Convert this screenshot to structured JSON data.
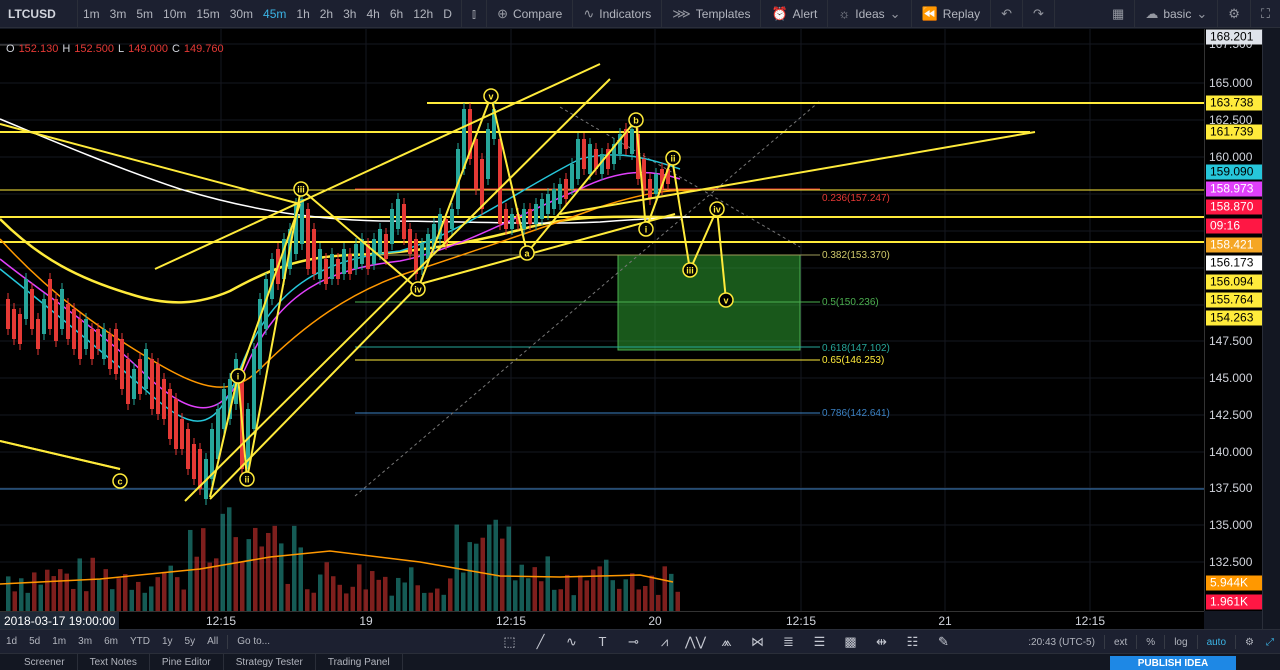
{
  "symbol": "LTCUSD",
  "intervals": [
    "1m",
    "3m",
    "5m",
    "10m",
    "15m",
    "30m",
    "45m",
    "1h",
    "2h",
    "3h",
    "4h",
    "6h",
    "12h",
    "D"
  ],
  "active_interval": "45m",
  "toolbar": {
    "compare": "Compare",
    "indicators": "Indicators",
    "templates": "Templates",
    "alert": "Alert",
    "ideas": "Ideas",
    "replay": "Replay",
    "layout": "basic"
  },
  "ohlc": {
    "o_label": "O",
    "o": "152.130",
    "h_label": "H",
    "h": "152.500",
    "l_label": "L",
    "l": "149.000",
    "c_label": "C",
    "c": "149.760"
  },
  "price_ticks": [
    "167.500",
    "165.000",
    "162.500",
    "160.000",
    "147.500",
    "145.000",
    "142.500",
    "140.000",
    "137.500",
    "135.000",
    "132.500"
  ],
  "price_labels": [
    {
      "text": "168.201",
      "bg": "#dfe3ea",
      "color": "#000000"
    },
    {
      "text": "163.738",
      "bg": "#ffeb3b",
      "color": "#000000"
    },
    {
      "text": "161.739",
      "bg": "#ffeb3b",
      "color": "#000000"
    },
    {
      "text": "159.090",
      "bg": "#26c6da",
      "color": "#000000"
    },
    {
      "text": "158.973",
      "bg": "#e040fb",
      "color": "#ffffff"
    },
    {
      "text": "158.870",
      "bg": "#ff1744",
      "color": "#ffffff"
    },
    {
      "text": "09:16",
      "bg": "#ff1744",
      "color": "#ffffff"
    },
    {
      "text": "158.421",
      "bg": "#f5a623",
      "color": "#ffffff"
    },
    {
      "text": "156.173",
      "bg": "#ffffff",
      "color": "#000000"
    },
    {
      "text": "156.094",
      "bg": "#ffeb3b",
      "color": "#000000"
    },
    {
      "text": "155.764",
      "bg": "#ffeb3b",
      "color": "#000000"
    },
    {
      "text": "154.263",
      "bg": "#ffeb3b",
      "color": "#000000"
    },
    {
      "text": "5.944K",
      "bg": "#ff9800",
      "color": "#ffffff"
    },
    {
      "text": "1.961K",
      "bg": "#ff1744",
      "color": "#ffffff"
    }
  ],
  "fib_labels": [
    {
      "text": "0.236(157.247)",
      "color": "#e53935"
    },
    {
      "text": "0.382(153.370)",
      "color": "#cfc86a"
    },
    {
      "text": "0.5(150.236)",
      "color": "#4caf50"
    },
    {
      "text": "0.618(147.102)",
      "color": "#26a69a"
    },
    {
      "text": "0.65(146.253)",
      "color": "#ffeb3b"
    },
    {
      "text": "0.786(142.641)",
      "color": "#3b82c4"
    }
  ],
  "wave_labels": [
    "c",
    "i",
    "ii",
    "iii",
    "iv",
    "v",
    "a",
    "b",
    "i",
    "ii",
    "iii",
    "iv",
    "v"
  ],
  "time_axis": {
    "timestamp": "2018-03-17 19:00:00",
    "ticks": [
      "12:15",
      "19",
      "12:15",
      "20",
      "12:15",
      "21",
      "12:15"
    ]
  },
  "bottom": {
    "ranges": [
      "1d",
      "5d",
      "1m",
      "3m",
      "6m",
      "YTD",
      "1y",
      "5y",
      "All"
    ],
    "goto": "Go to...",
    "clock": ":20:43 (UTC-5)",
    "ext": "ext",
    "percent": "%",
    "log": "log",
    "auto": "auto"
  },
  "panels": [
    "Screener",
    "Text Notes",
    "Pine Editor",
    "Strategy Tester",
    "Trading Panel"
  ],
  "publish": "PUBLISH IDEA",
  "colors": {
    "bull": "#26a69a",
    "bear": "#e53935",
    "drawing": "#ffeb3b",
    "accent": "#3bb3e4"
  }
}
